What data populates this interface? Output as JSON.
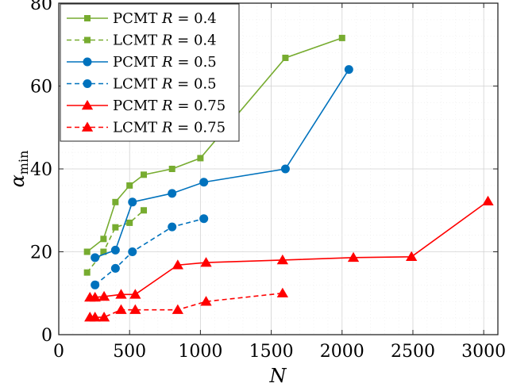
{
  "chart_data": {
    "type": "line",
    "xlabel": "N",
    "ylabel_main": "α",
    "ylabel_sub": "min",
    "xlim": [
      0,
      3100
    ],
    "ylim": [
      0,
      80
    ],
    "x_ticks": [
      0,
      500,
      1000,
      1500,
      2000,
      2500,
      3000
    ],
    "y_ticks": [
      0,
      20,
      40,
      60,
      80
    ],
    "grid": true,
    "legend_placement": "top-left",
    "series": [
      {
        "name": "PCMT R = 0.4",
        "method": "PCMT",
        "R": "0.4",
        "color": "#77ac30",
        "marker": "square",
        "dash": "solid",
        "x": [
          200,
          316,
          400,
          500,
          600,
          800,
          1000,
          1600,
          2000
        ],
        "y": [
          20,
          23.1,
          32,
          36,
          38.6,
          40,
          42.6,
          66.8,
          71.6
        ]
      },
      {
        "name": "LCMT R = 0.4",
        "method": "LCMT",
        "R": "0.4",
        "color": "#77ac30",
        "marker": "square",
        "dash": "dashed",
        "x": [
          200,
          316,
          400,
          500,
          600
        ],
        "y": [
          15,
          20,
          25.9,
          27,
          30
        ]
      },
      {
        "name": "PCMT R = 0.5",
        "method": "PCMT",
        "R": "0.5",
        "color": "#0072bd",
        "marker": "circle",
        "dash": "solid",
        "x": [
          256,
          400,
          520,
          800,
          1024,
          1600,
          2048
        ],
        "y": [
          18.6,
          20.4,
          32,
          34.1,
          36.8,
          40,
          64
        ]
      },
      {
        "name": "LCMT R = 0.5",
        "method": "LCMT",
        "R": "0.5",
        "color": "#0072bd",
        "marker": "circle",
        "dash": "dashed",
        "x": [
          256,
          400,
          520,
          800,
          1024
        ],
        "y": [
          12,
          16,
          20,
          26,
          28
        ]
      },
      {
        "name": "PCMT R = 0.75",
        "method": "PCMT",
        "R": "0.75",
        "color": "#ff0000",
        "marker": "triangle",
        "dash": "solid",
        "x": [
          220,
          256,
          320,
          440,
          540,
          840,
          1040,
          1580,
          2080,
          2490,
          3030
        ],
        "y": [
          9,
          9,
          9.2,
          9.7,
          9.7,
          16.8,
          17.4,
          18,
          18.6,
          18.8,
          32.2
        ]
      },
      {
        "name": "LCMT R = 0.75",
        "method": "LCMT",
        "R": "0.75",
        "color": "#ff0000",
        "marker": "triangle",
        "dash": "dashed",
        "x": [
          220,
          256,
          320,
          440,
          540,
          840,
          1040,
          1580
        ],
        "y": [
          4.2,
          4.2,
          4.2,
          6,
          6,
          6,
          8,
          10
        ]
      }
    ]
  }
}
